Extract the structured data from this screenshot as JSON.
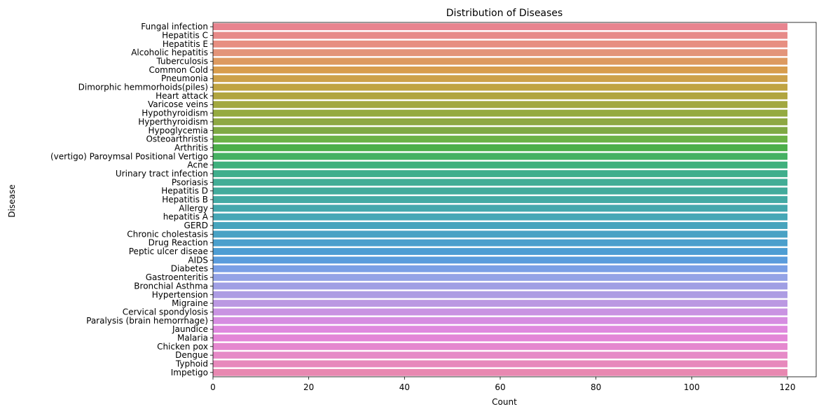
{
  "chart_data": {
    "type": "bar",
    "orientation": "horizontal",
    "title": "Distribution of Diseases",
    "xlabel": "Count",
    "ylabel": "Disease",
    "xlim": [
      0,
      126
    ],
    "xticks": [
      0,
      20,
      40,
      60,
      80,
      100,
      120
    ],
    "grid": false,
    "categories": [
      "Fungal infection",
      "Hepatitis C",
      "Hepatitis E",
      "Alcoholic hepatitis",
      "Tuberculosis",
      "Common Cold",
      "Pneumonia",
      "Dimorphic hemmorhoids(piles)",
      "Heart attack",
      "Varicose veins",
      "Hypothyroidism",
      "Hyperthyroidism",
      "Hypoglycemia",
      "Osteoarthristis",
      "Arthritis",
      "(vertigo) Paroymsal  Positional Vertigo",
      "Acne",
      "Urinary tract infection",
      "Psoriasis",
      "Hepatitis D",
      "Hepatitis B",
      "Allergy",
      "hepatitis A",
      "GERD",
      "Chronic cholestasis",
      "Drug Reaction",
      "Peptic ulcer diseae",
      "AIDS",
      "Diabetes ",
      "Gastroenteritis",
      "Bronchial Asthma",
      "Hypertension ",
      "Migraine",
      "Cervical spondylosis",
      "Paralysis (brain hemorrhage)",
      "Jaundice",
      "Malaria",
      "Chicken pox",
      "Dengue",
      "Typhoid",
      "Impetigo"
    ],
    "values": [
      120,
      120,
      120,
      120,
      120,
      120,
      120,
      120,
      120,
      120,
      120,
      120,
      120,
      120,
      120,
      120,
      120,
      120,
      120,
      120,
      120,
      120,
      120,
      120,
      120,
      120,
      120,
      120,
      120,
      120,
      120,
      120,
      120,
      120,
      120,
      120,
      120,
      120,
      120,
      120,
      120
    ],
    "colors": [
      "#e8848f",
      "#e78a88",
      "#e78f81",
      "#e3947a",
      "#dd9a60",
      "#d89d4d",
      "#cda14a",
      "#c0a442",
      "#b1a53f",
      "#a2a840",
      "#95aa40",
      "#8ea843",
      "#7fa944",
      "#6bb246",
      "#4daf4a",
      "#45b163",
      "#3fb07d",
      "#3fae8c",
      "#42ad96",
      "#43ab9c",
      "#44aaa4",
      "#45a8ad",
      "#46a7b6",
      "#47a4bd",
      "#49a2c4",
      "#4a9fcc",
      "#4d9dd3",
      "#5a9cdc",
      "#7a9fe5",
      "#94a3e6",
      "#a09fe4",
      "#ad9ce3",
      "#bb98e2",
      "#c993e2",
      "#d68de1",
      "#df89de",
      "#e386d7",
      "#e588cf",
      "#e68ac7",
      "#e789bc",
      "#e888b1"
    ]
  }
}
